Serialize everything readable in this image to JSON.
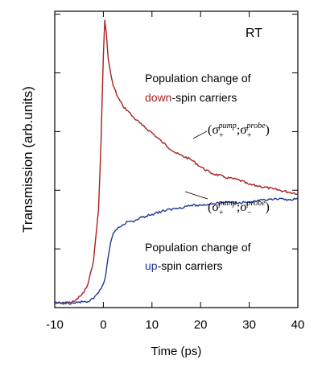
{
  "chart_data": {
    "type": "line",
    "title": "",
    "xlabel": "Time (ps)",
    "ylabel": "Transmission (arb.units)",
    "xlim": [
      -10,
      40
    ],
    "ylim": [
      0,
      1
    ],
    "grid": false,
    "x_ticks": [
      "-10",
      "0",
      "10",
      "20",
      "30",
      "40"
    ],
    "corner_label": "RT",
    "series": [
      {
        "color": "#a81f1f",
        "x": [
          -10,
          -8,
          -6,
          -4,
          -3,
          -2,
          -1,
          -0.5,
          0,
          0.3,
          0.6,
          1,
          1.5,
          2,
          3,
          4,
          5,
          6,
          8,
          10,
          12,
          15,
          18,
          20,
          22,
          25,
          28,
          30,
          32,
          35,
          38,
          40
        ],
        "y": [
          0.015,
          0.015,
          0.02,
          0.05,
          0.09,
          0.16,
          0.33,
          0.55,
          0.85,
          0.97,
          0.93,
          0.84,
          0.79,
          0.75,
          0.71,
          0.68,
          0.665,
          0.645,
          0.615,
          0.59,
          0.56,
          0.52,
          0.5,
          0.475,
          0.455,
          0.44,
          0.43,
          0.415,
          0.41,
          0.4,
          0.39,
          0.385
        ]
      },
      {
        "color": "#1f3a8f",
        "x": [
          -10,
          -8,
          -6,
          -4,
          -3,
          -2,
          -1,
          0,
          0.5,
          1,
          1.5,
          2,
          3,
          4,
          5,
          6,
          8,
          10,
          12,
          15,
          18,
          20,
          22,
          25,
          28,
          30,
          32,
          35,
          38,
          40
        ],
        "y": [
          0.015,
          0.015,
          0.015,
          0.02,
          0.02,
          0.03,
          0.05,
          0.08,
          0.11,
          0.17,
          0.22,
          0.25,
          0.27,
          0.28,
          0.29,
          0.29,
          0.305,
          0.315,
          0.325,
          0.335,
          0.345,
          0.345,
          0.35,
          0.355,
          0.355,
          0.355,
          0.36,
          0.365,
          0.365,
          0.365
        ]
      }
    ],
    "annotations": {
      "down_line1": "Population change of",
      "down_colored": "down",
      "down_rest": "-spin carriers",
      "up_line1": "Population change of",
      "up_colored": "up",
      "up_rest": "-spin carriers",
      "notation_down": {
        "open": "(σ",
        "sub1": "+",
        "sup1": "pump",
        "sep": ";σ",
        "sub2": "+",
        "sup2": "probe",
        "close": ")"
      },
      "notation_up": {
        "open": "(σ",
        "sub1": "+",
        "sup1": "pump",
        "sep": ";σ",
        "sub2": "−",
        "sup2": "probe",
        "close": ")"
      }
    }
  }
}
